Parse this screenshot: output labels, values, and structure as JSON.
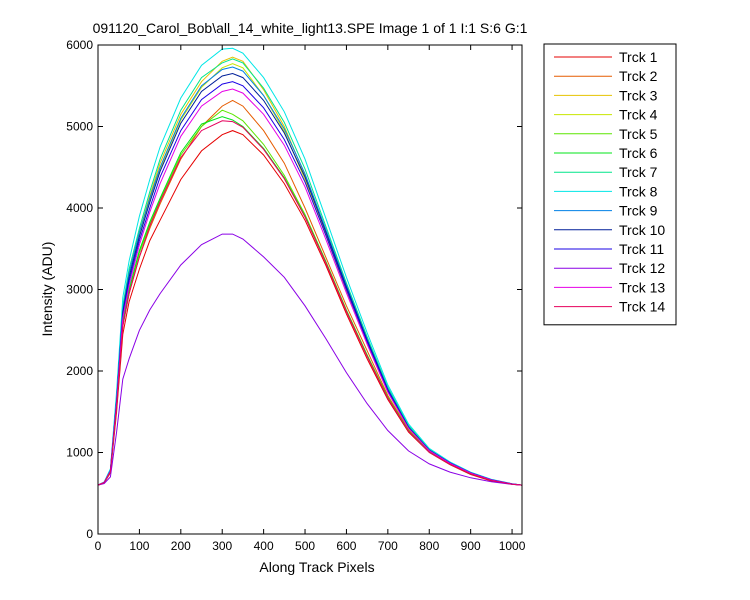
{
  "chart_data": {
    "type": "line",
    "title": "091120_Carol_Bob\\all_14_white_light13.SPE  Image 1 of 1  I:1  S:6  G:1",
    "xlabel": "Along Track Pixels",
    "ylabel": "Intensity (ADU)",
    "xlim": [
      0,
      1024
    ],
    "ylim": [
      0,
      6000
    ],
    "x_ticks": [
      "0",
      "100",
      "200",
      "300",
      "400",
      "500",
      "600",
      "700",
      "800",
      "900",
      "1000"
    ],
    "y_ticks": [
      "0",
      "1000",
      "2000",
      "3000",
      "4000",
      "5000",
      "6000"
    ],
    "grid": false,
    "legend_position": "outside-right",
    "x": [
      0,
      15,
      30,
      45,
      60,
      75,
      100,
      125,
      150,
      200,
      250,
      300,
      325,
      350,
      400,
      450,
      500,
      550,
      600,
      650,
      700,
      750,
      800,
      850,
      900,
      950,
      1000,
      1024
    ],
    "series": [
      {
        "name": "Trck 1",
        "color": "#e60000",
        "values": [
          600,
          630,
          750,
          1500,
          2450,
          2850,
          3250,
          3600,
          3850,
          4350,
          4700,
          4900,
          4950,
          4900,
          4650,
          4300,
          3850,
          3300,
          2700,
          2150,
          1650,
          1250,
          1000,
          850,
          730,
          650,
          610,
          600
        ]
      },
      {
        "name": "Trck 2",
        "color": "#e65c00",
        "values": [
          600,
          630,
          760,
          1550,
          2550,
          2950,
          3400,
          3750,
          4050,
          4600,
          5000,
          5250,
          5320,
          5250,
          4950,
          4550,
          4000,
          3400,
          2800,
          2250,
          1700,
          1280,
          1010,
          860,
          740,
          660,
          615,
          600
        ]
      },
      {
        "name": "Trck 3",
        "color": "#e6c300",
        "values": [
          600,
          635,
          780,
          1650,
          2750,
          3200,
          3700,
          4150,
          4550,
          5150,
          5550,
          5800,
          5850,
          5800,
          5450,
          5000,
          4400,
          3700,
          3000,
          2350,
          1750,
          1300,
          1020,
          870,
          750,
          665,
          615,
          600
        ]
      },
      {
        "name": "Trck 4",
        "color": "#c8e600",
        "values": [
          600,
          635,
          775,
          1640,
          2720,
          3150,
          3650,
          4100,
          4480,
          5080,
          5480,
          5720,
          5770,
          5720,
          5380,
          4940,
          4350,
          3670,
          2980,
          2330,
          1740,
          1295,
          1018,
          868,
          748,
          664,
          614,
          600
        ]
      },
      {
        "name": "Trck 5",
        "color": "#5ce600",
        "values": [
          600,
          630,
          765,
          1560,
          2580,
          2980,
          3450,
          3800,
          4100,
          4650,
          5000,
          5200,
          5150,
          5070,
          4780,
          4400,
          3920,
          3350,
          2750,
          2200,
          1680,
          1270,
          1010,
          860,
          740,
          660,
          612,
          600
        ]
      },
      {
        "name": "Trck 6",
        "color": "#00e619",
        "values": [
          600,
          632,
          768,
          1580,
          2600,
          3000,
          3480,
          3830,
          4120,
          4680,
          5030,
          5120,
          5080,
          5000,
          4730,
          4370,
          3900,
          3340,
          2740,
          2190,
          1670,
          1265,
          1005,
          858,
          738,
          658,
          611,
          600
        ]
      },
      {
        "name": "Trck 7",
        "color": "#00e68a",
        "values": [
          600,
          636,
          785,
          1680,
          2800,
          3250,
          3750,
          4200,
          4600,
          5200,
          5600,
          5780,
          5830,
          5780,
          5470,
          5050,
          4480,
          3780,
          3080,
          2420,
          1800,
          1330,
          1040,
          880,
          755,
          668,
          616,
          600
        ]
      },
      {
        "name": "Trck 8",
        "color": "#00e6e6",
        "values": [
          600,
          638,
          800,
          1750,
          2900,
          3350,
          3900,
          4350,
          4750,
          5350,
          5750,
          5950,
          5960,
          5900,
          5600,
          5180,
          4600,
          3880,
          3150,
          2470,
          1830,
          1350,
          1050,
          885,
          758,
          670,
          617,
          600
        ]
      },
      {
        "name": "Trck 9",
        "color": "#0080e6",
        "values": [
          600,
          634,
          778,
          1650,
          2750,
          3200,
          3700,
          4120,
          4500,
          5100,
          5500,
          5700,
          5730,
          5680,
          5380,
          4970,
          4420,
          3740,
          3050,
          2390,
          1780,
          1315,
          1030,
          875,
          752,
          666,
          615,
          600
        ]
      },
      {
        "name": "Trck 10",
        "color": "#001f99",
        "values": [
          600,
          634,
          775,
          1640,
          2720,
          3150,
          3650,
          4070,
          4450,
          5040,
          5430,
          5620,
          5650,
          5600,
          5320,
          4920,
          4380,
          3710,
          3030,
          2380,
          1770,
          1310,
          1028,
          873,
          750,
          665,
          614,
          600
        ]
      },
      {
        "name": "Trck 11",
        "color": "#1a00e6",
        "values": [
          600,
          633,
          772,
          1620,
          2680,
          3100,
          3600,
          4000,
          4380,
          4950,
          5330,
          5520,
          5550,
          5500,
          5230,
          4840,
          4320,
          3670,
          3000,
          2360,
          1760,
          1305,
          1025,
          870,
          748,
          664,
          613,
          600
        ]
      },
      {
        "name": "Trck 12",
        "color": "#8a00e6",
        "values": [
          600,
          620,
          700,
          1250,
          1900,
          2150,
          2500,
          2750,
          2950,
          3300,
          3550,
          3680,
          3680,
          3620,
          3400,
          3150,
          2800,
          2400,
          1980,
          1600,
          1270,
          1020,
          860,
          760,
          690,
          640,
          608,
          600
        ]
      },
      {
        "name": "Trck 13",
        "color": "#e600e6",
        "values": [
          600,
          633,
          770,
          1600,
          2650,
          3050,
          3550,
          3950,
          4300,
          4880,
          5250,
          5430,
          5460,
          5410,
          5150,
          4770,
          4260,
          3620,
          2960,
          2330,
          1740,
          1298,
          1022,
          868,
          747,
          663,
          613,
          600
        ]
      },
      {
        "name": "Trck 14",
        "color": "#e6005c",
        "values": [
          600,
          631,
          762,
          1560,
          2550,
          2950,
          3400,
          3780,
          4080,
          4620,
          4950,
          5070,
          5060,
          4990,
          4720,
          4360,
          3890,
          3330,
          2730,
          2180,
          1665,
          1262,
          1004,
          857,
          737,
          657,
          611,
          600
        ]
      }
    ]
  }
}
